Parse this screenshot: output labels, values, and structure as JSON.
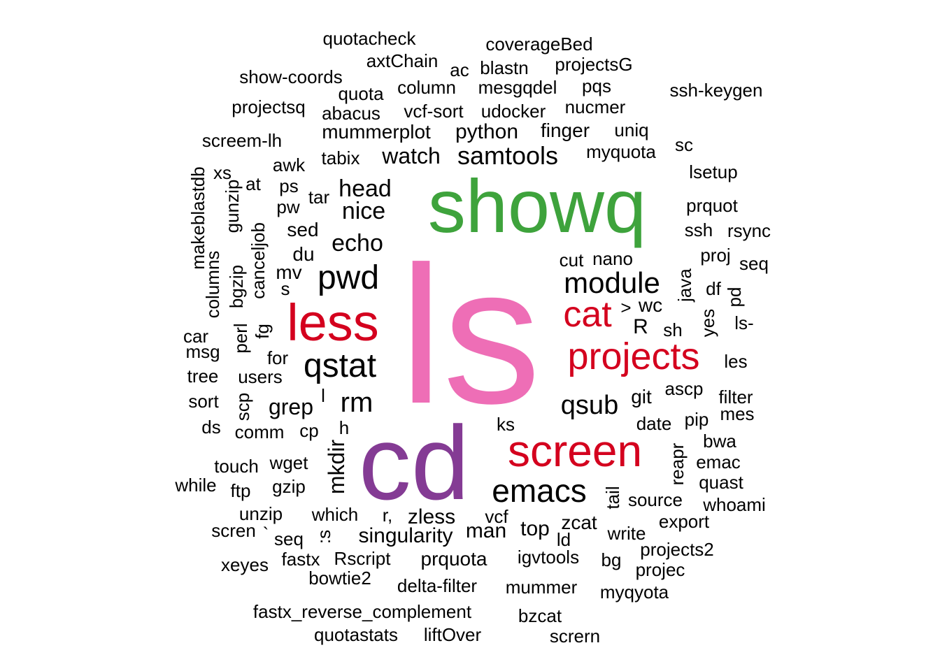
{
  "colors": {
    "pink": "#EE6EB6",
    "green": "#3EA33C",
    "purple": "#843B94",
    "red": "#D4001E",
    "black": "#000000"
  },
  "words": [
    "ls",
    "showq",
    "cd",
    "less",
    "screen",
    "projects",
    "cat",
    "emacs",
    "qstat",
    "module",
    "pwd",
    "rm",
    "qsub",
    "samtools",
    "echo",
    "nice",
    "head",
    "watch",
    "grep",
    "python",
    "mummerplot",
    "mkdir",
    "singularity",
    "zless",
    "man",
    "top",
    "R",
    "wc",
    "du",
    "mv",
    "sed",
    "tabix",
    "prquota",
    "vcf-sort",
    "udocker",
    "column",
    "mesgqdel",
    "quota",
    "abacus",
    "projectsq",
    "show-coords",
    "axtChain",
    "quotacheck",
    "coverageBed",
    "ac",
    "blastn",
    "projectsG",
    "pqs",
    "ssh-keygen",
    "nucmer",
    "finger",
    "uniq",
    "myquota",
    "sc",
    "lsetup",
    "prquot",
    "ssh",
    "rsync",
    "proj",
    "seq",
    "cut",
    "nano",
    "java",
    "df",
    "pd",
    "ls-",
    "yes",
    "sh",
    "les",
    "filter",
    "mes",
    "ascp",
    "git",
    "date",
    "pip",
    "bwa",
    "emac",
    "quast",
    "whoami",
    "reapr",
    "tail",
    "source",
    "export",
    "zcat",
    "vcf",
    "ld",
    "write",
    "projects2",
    "projec",
    "bg",
    "igvtools",
    "myqyota",
    "mummer",
    "delta-filter",
    "bzcat",
    "scrern",
    "liftOver",
    "quotastats",
    "fastx_reverse_complement",
    "bowtie2",
    "fastx",
    "Rscript",
    "xeyes",
    "seq",
    "scren",
    "unzip",
    "which",
    "r,",
    "ftp",
    "gzip",
    "while",
    "touch",
    "wget",
    "comm",
    "cp",
    "ds",
    "sort",
    "tree",
    "users",
    "for",
    "msg",
    "car",
    "perl",
    "fg",
    "columns",
    "bgzip",
    "canceljob",
    "gunzip",
    "makeblastdb",
    "xs",
    "at",
    "awk",
    "ps",
    "pw",
    "tar",
    "screem-lh",
    "s",
    "scp",
    "h",
    "l",
    "ks",
    ">",
    "`",
    ":s"
  ]
}
